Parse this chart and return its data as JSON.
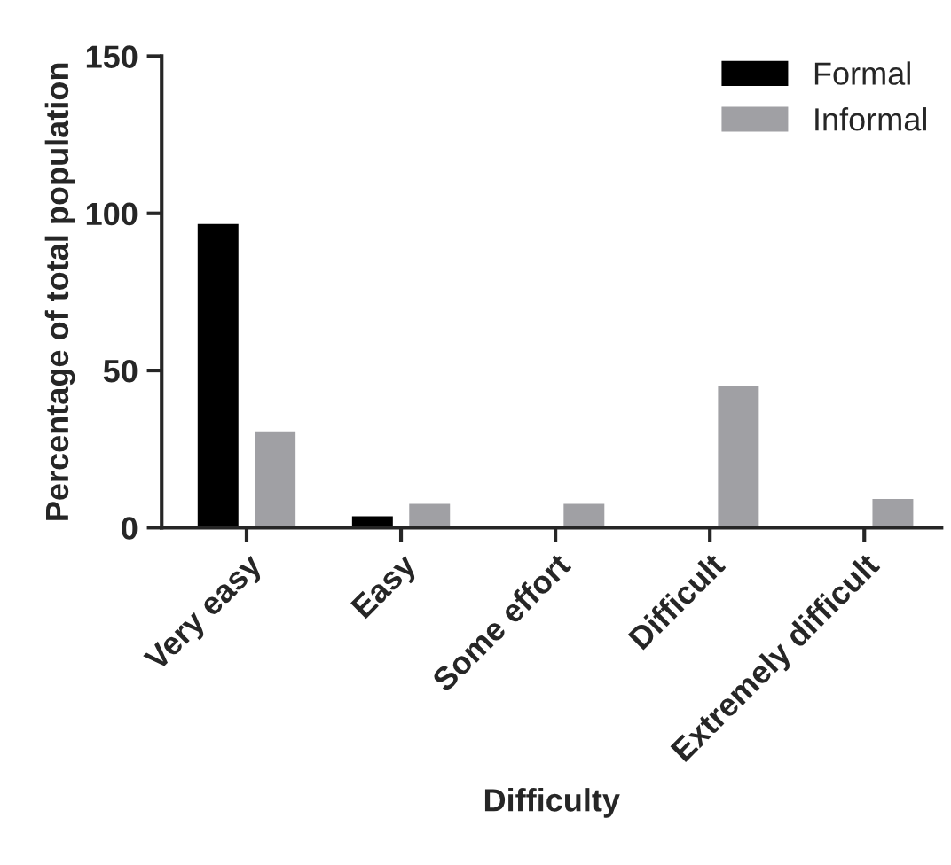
{
  "chart_data": {
    "type": "bar",
    "xlabel": "Difficulty",
    "ylabel": "Percentage of total population",
    "categories": [
      "Very easy",
      "Easy",
      "Some effort",
      "Difficult",
      "Extremely difficult"
    ],
    "series": [
      {
        "name": "Formal",
        "color": "#000000",
        "values": [
          97,
          4,
          null,
          null,
          null
        ]
      },
      {
        "name": "Informal",
        "color": "#a0a0a4",
        "values": [
          31,
          8,
          8,
          45.5,
          9.5
        ]
      }
    ],
    "ylim": [
      0,
      150
    ],
    "yticks": [
      0,
      50,
      100,
      150
    ],
    "grid": false,
    "legend": "top right"
  }
}
